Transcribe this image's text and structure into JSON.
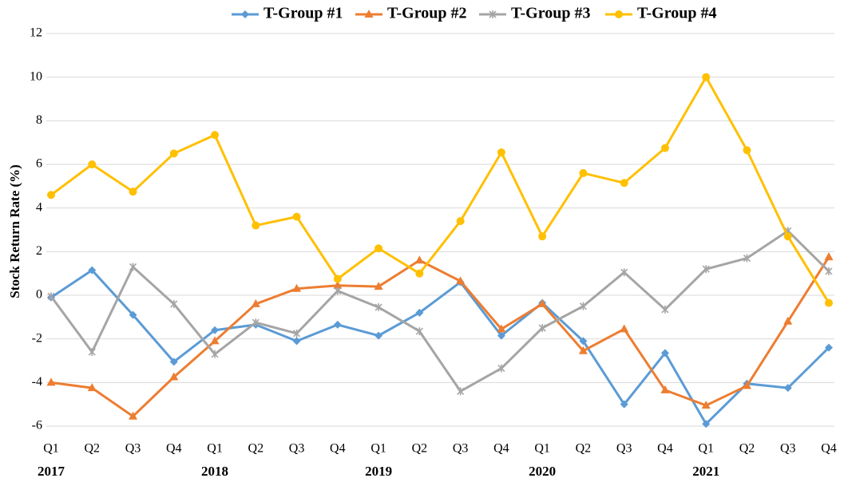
{
  "chart_data": {
    "type": "line",
    "y_label": "Stock Return Rate (%)",
    "categories": [
      "Q1",
      "Q2",
      "Q3",
      "Q4",
      "Q1",
      "Q2",
      "Q3",
      "Q4",
      "Q1",
      "Q2",
      "Q3",
      "Q4",
      "Q1",
      "Q2",
      "Q3",
      "Q4",
      "Q1",
      "Q2",
      "Q3",
      "Q4"
    ],
    "years": [
      "2017",
      "2018",
      "2019",
      "2020",
      "2021"
    ],
    "ylim": [
      -6,
      12
    ],
    "yticks": [
      -6,
      -4,
      -2,
      0,
      2,
      4,
      6,
      8,
      10,
      12
    ],
    "grid": true,
    "legend": "top",
    "series": [
      {
        "name": "T-Group #1",
        "color": "#5b9bd5",
        "marker": "diamond",
        "values": [
          -0.1,
          1.15,
          -0.9,
          -3.05,
          -1.6,
          -1.35,
          -2.1,
          -1.35,
          -1.85,
          -0.8,
          0.6,
          -1.85,
          -0.35,
          -2.1,
          -5.0,
          -2.65,
          -5.9,
          -4.05,
          -4.25,
          -2.4
        ]
      },
      {
        "name": "T-Group #2",
        "color": "#ed7d31",
        "marker": "triangle",
        "values": [
          -4.0,
          -4.25,
          -5.55,
          -3.75,
          -2.1,
          -0.4,
          0.3,
          0.45,
          0.4,
          1.6,
          0.65,
          -1.55,
          -0.4,
          -2.55,
          -1.55,
          -4.35,
          -5.05,
          -4.15,
          -1.2,
          1.75
        ]
      },
      {
        "name": "T-Group #3",
        "color": "#a5a5a5",
        "marker": "star",
        "values": [
          -0.05,
          -2.6,
          1.3,
          -0.4,
          -2.7,
          -1.25,
          -1.75,
          0.2,
          -0.55,
          -1.65,
          -4.4,
          -3.35,
          -1.5,
          -0.5,
          1.05,
          -0.65,
          1.2,
          1.7,
          2.95,
          1.1
        ]
      },
      {
        "name": "T-Group #4",
        "color": "#ffc000",
        "marker": "circle",
        "values": [
          4.6,
          6.0,
          4.75,
          6.5,
          7.35,
          3.2,
          3.6,
          0.75,
          2.15,
          1.0,
          3.4,
          6.55,
          2.7,
          5.6,
          5.15,
          6.75,
          10.0,
          6.65,
          2.7,
          -0.35
        ]
      }
    ]
  }
}
